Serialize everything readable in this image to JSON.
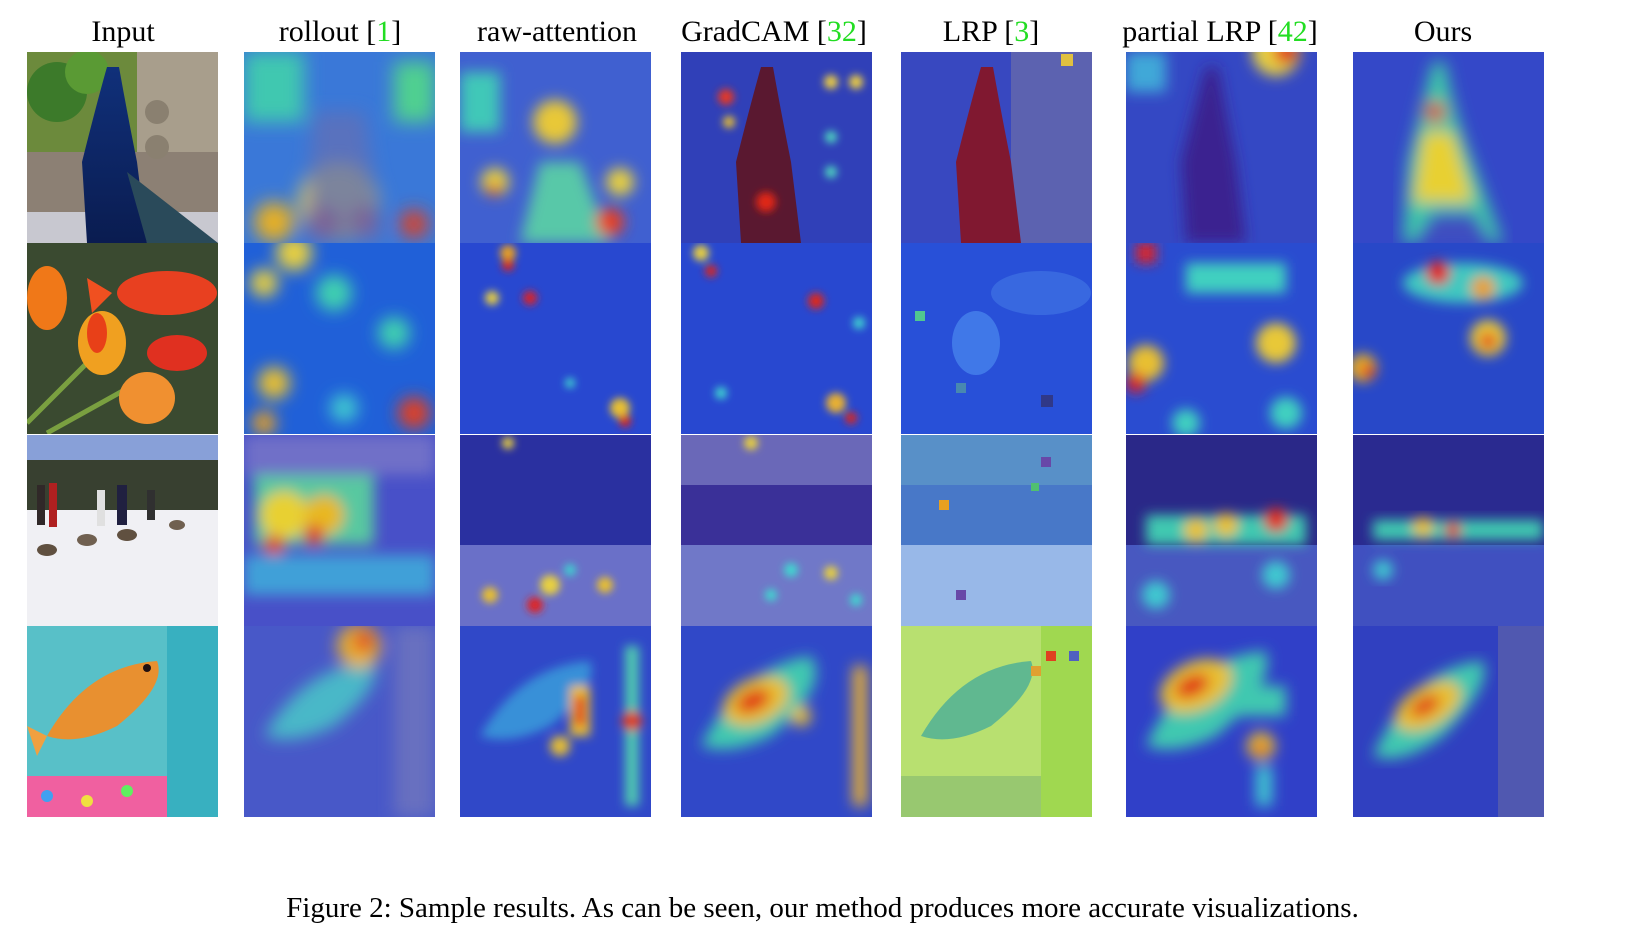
{
  "figure": {
    "columns": [
      {
        "name": "Input",
        "ref": ""
      },
      {
        "name": "rollout",
        "ref": "1"
      },
      {
        "name": "raw-attention",
        "ref": ""
      },
      {
        "name": "GradCAM",
        "ref": "32"
      },
      {
        "name": "LRP",
        "ref": "3"
      },
      {
        "name": "partial LRP",
        "ref": "42"
      },
      {
        "name": "Ours",
        "ref": ""
      }
    ],
    "rows": [
      "peacock",
      "goldfish and tulips",
      "dog sled race",
      "goldfish in tank"
    ],
    "caption": "Figure 2: Sample results. As can be seen, our method produces more accurate visualizations."
  },
  "colors": {
    "reference_bracket": "#22dd22",
    "heat_hot": "#d01010",
    "heat_warm": "#f2d020",
    "heat_mid": "#30c8c0",
    "heat_cold": "#2020c8"
  }
}
